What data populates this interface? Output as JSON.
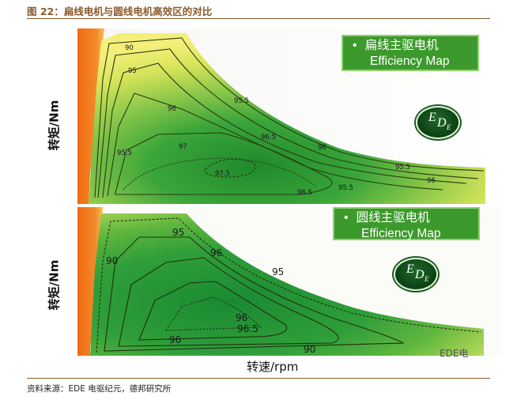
{
  "figure_title": "图 22：扁线电机与圆线电机高效区的对比",
  "source_note": "资料来源：EDE 电驱纪元，德邦研究所",
  "x_axis_label": "转速/rpm",
  "watermark": "EDE电",
  "colors": {
    "frame": "#8a5a2b",
    "low_eff": "#f07a1a",
    "mid_eff": "#e8e85a",
    "high_eff": "#2f9a2f",
    "legend_bg": "#3c9a2c"
  },
  "chart_data": [
    {
      "type": "heatmap",
      "subtype": "efficiency contour map",
      "legend": {
        "bullet": "•",
        "title": "扁线主驱电机",
        "subtitle": "Efficiency Map",
        "placement": "top-right"
      },
      "badge": {
        "e1": "E",
        "d": "D",
        "e2": "E"
      },
      "ylabel": "转矩/Nm",
      "xlabel": "",
      "contour_levels": [
        "90",
        "95",
        "95.5",
        "96",
        "96.5",
        "97",
        "97.5"
      ],
      "contour_labels": [
        {
          "text": "90"
        },
        {
          "text": "95"
        },
        {
          "text": "96"
        },
        {
          "text": "95.5"
        },
        {
          "text": "96.5"
        },
        {
          "text": "97"
        },
        {
          "text": "95.5"
        },
        {
          "text": "96"
        },
        {
          "text": "97.5"
        },
        {
          "text": "95.5"
        },
        {
          "text": "96"
        },
        {
          "text": "96.5"
        },
        {
          "text": "95.5"
        }
      ]
    },
    {
      "type": "heatmap",
      "subtype": "efficiency contour map",
      "legend": {
        "bullet": "•",
        "title": "圆线主驱电机",
        "subtitle": "Efficiency Map",
        "placement": "top-right"
      },
      "badge": {
        "e1": "E",
        "d": "D",
        "e2": "E"
      },
      "ylabel": "转矩/Nm",
      "xlabel": "转速/rpm",
      "contour_levels": [
        "90",
        "95",
        "96",
        "96.5"
      ],
      "contour_labels": [
        {
          "text": "95"
        },
        {
          "text": "90"
        },
        {
          "text": "96"
        },
        {
          "text": "95"
        },
        {
          "text": "96"
        },
        {
          "text": "96.5"
        },
        {
          "text": "96"
        },
        {
          "text": "90"
        }
      ]
    }
  ]
}
